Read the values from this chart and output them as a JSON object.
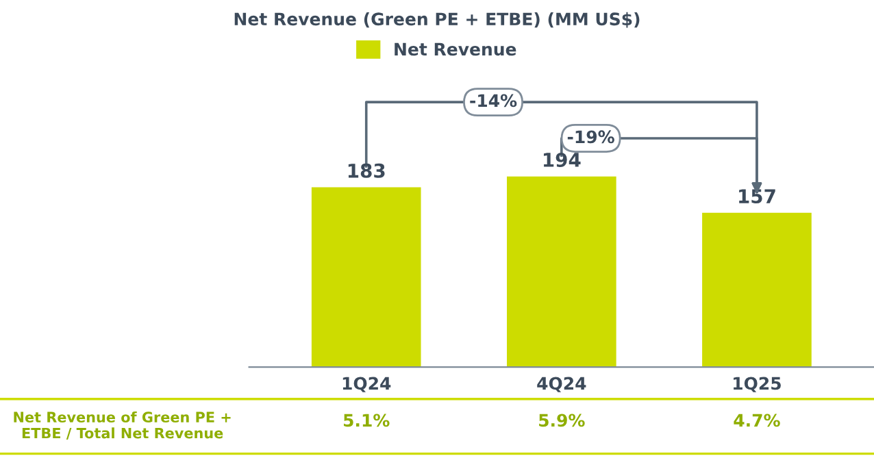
{
  "chart_data": {
    "type": "bar",
    "title": "Net Revenue (Green PE + ETBE) (MM US$)",
    "categories": [
      "1Q24",
      "4Q24",
      "1Q25"
    ],
    "series": [
      {
        "name": "Net Revenue",
        "color": "#cddc00",
        "values": [
          183,
          194,
          157
        ]
      }
    ],
    "data_labels": true,
    "legend": "top",
    "annotations": [
      "-14%",
      "-19%",
      "Net Revenue of Green PE + ETBE / Total Net Revenue",
      "5.1%",
      "5.9%",
      "4.7%"
    ]
  }
}
